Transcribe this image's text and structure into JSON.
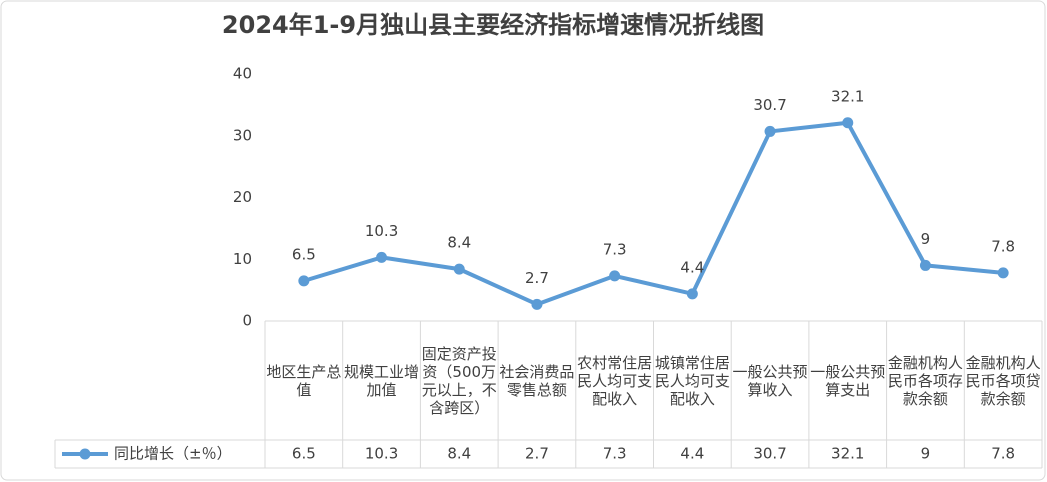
{
  "chart_data": {
    "type": "line",
    "title": "2024年1-9月独山县主要经济指标增速情况折线图",
    "categories": [
      "地区生产总值",
      "规模工业增加值",
      "固定资产投资（500万元以上，不含跨区）",
      "社会消费品零售总额",
      "农村常住居民人均可支配收入",
      "城镇常住居民人均可支配收入",
      "一般公共预算收入",
      "一般公共预算支出",
      "金融机构人民币各项存款余额",
      "金融机构人民币各项贷款余额"
    ],
    "series": [
      {
        "name": "同比增长（±％）",
        "color": "#5b9bd5",
        "values": [
          6.5,
          10.3,
          8.4,
          2.7,
          7.3,
          4.4,
          30.7,
          32.1,
          9,
          7.8
        ]
      }
    ],
    "ylim": [
      0,
      40
    ],
    "yticks": [
      0,
      10,
      20,
      30,
      40
    ],
    "grid": false
  }
}
